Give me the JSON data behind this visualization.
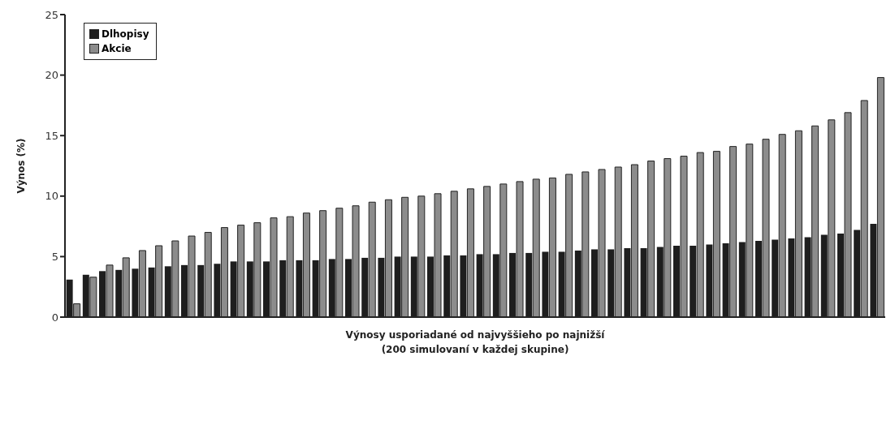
{
  "chart_data": {
    "type": "bar",
    "ylabel": "Výnos (%)",
    "xlabel": "Výnosy usporiadané od najvyššieho po najnižší\n(200 simulovaní v každej skupine)",
    "categories": [
      null,
      null,
      null,
      null,
      null,
      null,
      null,
      null,
      null,
      null,
      null,
      null,
      null,
      null,
      null,
      null,
      null,
      null,
      null,
      null,
      null,
      null,
      null,
      null,
      null,
      null,
      null,
      null,
      null,
      null,
      null,
      null,
      null,
      null,
      null,
      null,
      null,
      null,
      null,
      null,
      null,
      null,
      null,
      null,
      null,
      null,
      null,
      null,
      null,
      null
    ],
    "series": [
      {
        "name": "Dlhopisy",
        "color": "#1e1e1e",
        "values": [
          3.1,
          3.5,
          3.8,
          3.9,
          4.0,
          4.1,
          4.2,
          4.3,
          4.3,
          4.4,
          4.6,
          4.6,
          4.6,
          4.7,
          4.7,
          4.7,
          4.8,
          4.8,
          4.9,
          4.9,
          5.0,
          5.0,
          5.0,
          5.1,
          5.1,
          5.2,
          5.2,
          5.3,
          5.3,
          5.4,
          5.4,
          5.5,
          5.6,
          5.6,
          5.7,
          5.7,
          5.8,
          5.9,
          5.9,
          6.0,
          6.1,
          6.2,
          6.3,
          6.4,
          6.5,
          6.6,
          6.8,
          6.9,
          7.2,
          7.7
        ]
      },
      {
        "name": "Akcie",
        "color": "#8c8c8c",
        "values": [
          1.1,
          3.3,
          4.3,
          4.9,
          5.5,
          5.9,
          6.3,
          6.7,
          7.0,
          7.4,
          7.6,
          7.8,
          8.2,
          8.3,
          8.6,
          8.8,
          9.0,
          9.2,
          9.5,
          9.7,
          9.9,
          10.0,
          10.2,
          10.4,
          10.6,
          10.8,
          11.0,
          11.2,
          11.4,
          11.5,
          11.8,
          12.0,
          12.2,
          12.4,
          12.6,
          12.9,
          13.1,
          13.3,
          13.6,
          13.7,
          14.1,
          14.3,
          14.7,
          15.1,
          15.4,
          15.8,
          16.3,
          16.9,
          17.9,
          19.8
        ]
      }
    ],
    "ylim": [
      0,
      25
    ],
    "yticks": [
      0,
      5,
      10,
      15,
      20,
      25
    ],
    "grid": false,
    "legend": "top left"
  }
}
